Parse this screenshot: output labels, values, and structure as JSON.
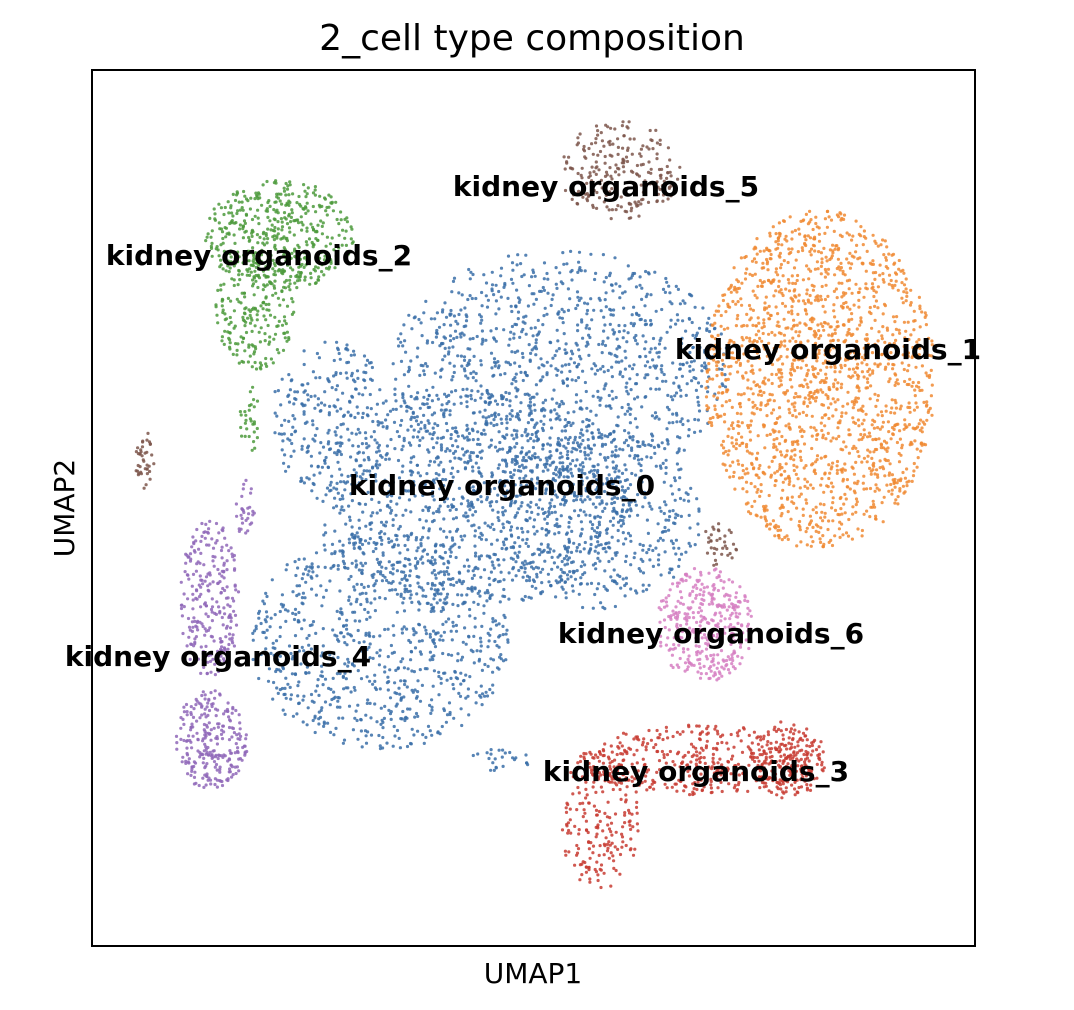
{
  "chart_data": {
    "type": "scatter",
    "title": "2_cell type composition",
    "xlabel": "UMAP1",
    "ylabel": "UMAP2",
    "grid": false,
    "legend": "on data",
    "ticks": false,
    "series": [
      {
        "name": "kidney organoids_0",
        "color": "#3a6fa8",
        "label_at": [
          502,
          487
        ],
        "regions": [
          {
            "cx": 560,
            "cy": 370,
            "rx": 170,
            "ry": 120,
            "n": 1100
          },
          {
            "cx": 470,
            "cy": 500,
            "rx": 160,
            "ry": 110,
            "n": 1000
          },
          {
            "cx": 380,
            "cy": 640,
            "rx": 130,
            "ry": 110,
            "n": 800
          },
          {
            "cx": 600,
            "cy": 520,
            "rx": 100,
            "ry": 90,
            "n": 450
          },
          {
            "cx": 330,
            "cy": 420,
            "rx": 60,
            "ry": 80,
            "n": 250
          },
          {
            "cx": 500,
            "cy": 760,
            "rx": 30,
            "ry": 12,
            "n": 25
          }
        ]
      },
      {
        "name": "kidney organoids_1",
        "color": "#f08a33",
        "label_at": [
          828,
          351
        ],
        "regions": [
          {
            "cx": 820,
            "cy": 380,
            "rx": 115,
            "ry": 170,
            "n": 1700
          }
        ]
      },
      {
        "name": "kidney organoids_2",
        "color": "#4c9a3c",
        "label_at": [
          259,
          257
        ],
        "regions": [
          {
            "cx": 280,
            "cy": 235,
            "rx": 75,
            "ry": 55,
            "n": 450
          },
          {
            "cx": 255,
            "cy": 310,
            "rx": 40,
            "ry": 60,
            "n": 220
          },
          {
            "cx": 250,
            "cy": 420,
            "rx": 10,
            "ry": 35,
            "n": 30
          }
        ]
      },
      {
        "name": "kidney organoids_3",
        "color": "#c83c33",
        "label_at": [
          696,
          773
        ],
        "regions": [
          {
            "cx": 700,
            "cy": 760,
            "rx": 120,
            "ry": 35,
            "n": 400
          },
          {
            "cx": 600,
            "cy": 820,
            "rx": 40,
            "ry": 70,
            "n": 200
          },
          {
            "cx": 790,
            "cy": 760,
            "rx": 35,
            "ry": 40,
            "n": 180
          }
        ]
      },
      {
        "name": "kidney organoids_4",
        "color": "#8f67b8",
        "label_at": [
          218,
          658
        ],
        "regions": [
          {
            "cx": 210,
            "cy": 600,
            "rx": 30,
            "ry": 80,
            "n": 250
          },
          {
            "cx": 210,
            "cy": 740,
            "rx": 38,
            "ry": 50,
            "n": 250
          },
          {
            "cx": 245,
            "cy": 510,
            "rx": 10,
            "ry": 30,
            "n": 30
          }
        ]
      },
      {
        "name": "kidney organoids_5",
        "color": "#7d564b",
        "label_at": [
          606,
          188
        ],
        "regions": [
          {
            "cx": 620,
            "cy": 170,
            "rx": 60,
            "ry": 50,
            "n": 220
          },
          {
            "cx": 145,
            "cy": 460,
            "rx": 10,
            "ry": 30,
            "n": 40
          },
          {
            "cx": 720,
            "cy": 545,
            "rx": 18,
            "ry": 22,
            "n": 35
          }
        ]
      },
      {
        "name": "kidney organoids_6",
        "color": "#d67fc2",
        "label_at": [
          711,
          635
        ],
        "regions": [
          {
            "cx": 705,
            "cy": 625,
            "rx": 48,
            "ry": 58,
            "n": 350
          }
        ]
      }
    ]
  }
}
